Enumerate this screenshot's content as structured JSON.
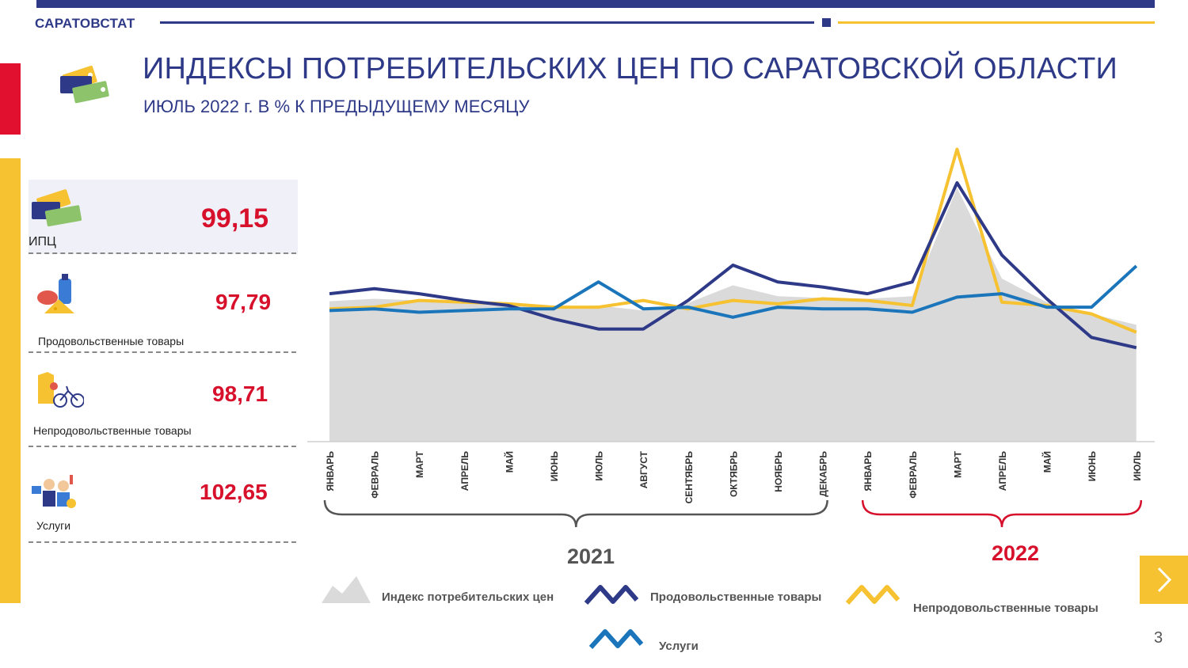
{
  "header": {
    "brand": "САРАТОВСТАТ",
    "title": "ИНДЕКСЫ ПОТРЕБИТЕЛЬСКИХ ЦЕН ПО САРАТОВСКОЙ ОБЛАСТИ",
    "subtitle": "ИЮЛЬ 2022 г. В % К ПРЕДЫДУЩЕМУ МЕСЯЦУ"
  },
  "panels": [
    {
      "label": "ИПЦ",
      "value": "99,15",
      "icon": "price-tags-icon"
    },
    {
      "label": "Продовольственные товары",
      "value": "97,79",
      "icon": "food-icon"
    },
    {
      "label": "Непродовольственные товары",
      "value": "98,71",
      "icon": "nonfood-icon"
    },
    {
      "label": "Услуги",
      "value": "102,65",
      "icon": "services-icon"
    }
  ],
  "colors": {
    "navy": "#2e3a87",
    "yellow": "#f6c231",
    "blue": "#1b75bb",
    "red": "#d7102c",
    "area": "#dadada"
  },
  "chart_data": {
    "type": "line",
    "categories": [
      "ЯНВАРЬ",
      "ФЕВРАЛЬ",
      "МАРТ",
      "АПРЕЛЬ",
      "МАЙ",
      "ИЮНЬ",
      "ИЮЛЬ",
      "АВГУСТ",
      "СЕНТЯБРЬ",
      "ОКТЯБРЬ",
      "НОЯБРЬ",
      "ДЕКАБРЬ",
      "ЯНВАРЬ",
      "ФЕВРАЛЬ",
      "МАРТ",
      "АПРЕЛЬ",
      "МАЙ",
      "ИЮНЬ",
      "ИЮЛЬ"
    ],
    "year_groups": [
      {
        "label": "2021",
        "from": 0,
        "to": 11,
        "color": "#555555"
      },
      {
        "label": "2022",
        "from": 12,
        "to": 18,
        "color": "#d7102c"
      }
    ],
    "series": [
      {
        "name": "Индекс потребительских  цен",
        "kind": "area",
        "color": "#dadada",
        "values": [
          100.55,
          100.7,
          100.6,
          100.5,
          100.4,
          100.2,
          100.3,
          100.0,
          100.45,
          101.5,
          100.85,
          100.75,
          100.7,
          100.85,
          107.3,
          101.9,
          100.5,
          99.8,
          99.15
        ]
      },
      {
        "name": "Продовольственные товары",
        "kind": "line",
        "color": "#2e3a87",
        "values": [
          101.0,
          101.3,
          101.0,
          100.6,
          100.3,
          99.5,
          98.9,
          98.9,
          100.6,
          102.7,
          101.7,
          101.4,
          101.0,
          101.7,
          107.6,
          103.3,
          100.7,
          98.4,
          97.79
        ]
      },
      {
        "name": "Непродовольственные товары",
        "kind": "line",
        "color": "#f6c231",
        "values": [
          100.1,
          100.2,
          100.6,
          100.5,
          100.4,
          100.2,
          100.2,
          100.6,
          100.1,
          100.6,
          100.4,
          100.7,
          100.6,
          100.3,
          109.6,
          100.5,
          100.3,
          99.8,
          98.71
        ]
      },
      {
        "name": "Услуги",
        "kind": "line",
        "color": "#1b75bb",
        "values": [
          100.0,
          100.1,
          99.9,
          100.0,
          100.1,
          100.1,
          101.7,
          100.1,
          100.2,
          99.6,
          100.2,
          100.1,
          100.1,
          99.9,
          100.8,
          101.0,
          100.2,
          100.2,
          102.65
        ]
      }
    ],
    "ylim": [
      92.2,
      110.0
    ]
  },
  "footer": {
    "page_number": "3",
    "next_icon": "chevron-right-icon"
  }
}
